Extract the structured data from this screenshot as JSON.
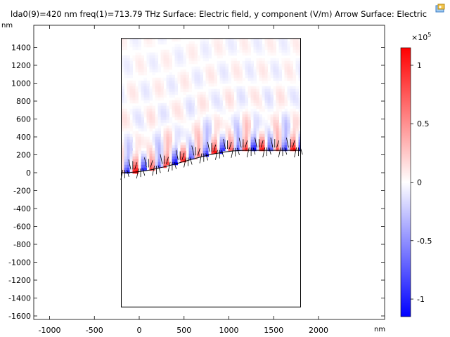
{
  "plot": {
    "title": "lda0(9)=420 nm freq(1)=713.79 THz   Surface: Electric field, y component (V/m)  Arrow Surface: Electric",
    "y_unit": "nm",
    "x_unit": "nm",
    "colorbar_exponent_base": "×10",
    "colorbar_exponent_power": "5"
  },
  "toolbar": {
    "copy_icon": "image-copy-icon"
  },
  "chart_data": {
    "type": "heatmap",
    "title": "Surface: Electric field, y component (V/m)",
    "parameters": {
      "lda0": "420 nm",
      "freq": "713.79 THz"
    },
    "xlabel": "nm",
    "ylabel": "nm",
    "xlim": [
      -1200,
      2250
    ],
    "ylim": [
      -1650,
      1650
    ],
    "x_ticks": [
      -1000,
      -500,
      0,
      500,
      1000,
      1500,
      2000
    ],
    "y_ticks": [
      1400,
      1200,
      1000,
      800,
      600,
      400,
      200,
      0,
      -200,
      -400,
      -600,
      -800,
      -1000,
      -1200,
      -1400,
      -1600
    ],
    "domain": {
      "x": [
        -200,
        1800
      ],
      "y": [
        -1500,
        1500
      ]
    },
    "interface": {
      "x_start": -200,
      "y_start": 0,
      "x_end": 1200,
      "y_end": 250,
      "flat_until": 1800
    },
    "field_period_nm": 176,
    "colorbar": {
      "colors": [
        "#ff0000",
        "#ffffff",
        "#0000ff"
      ],
      "max": 1.15,
      "min": -1.15,
      "ticks": [
        1,
        0.5,
        0,
        -0.5,
        -1
      ],
      "tick_labels": [
        "1",
        "0.5",
        "0",
        "-0.5",
        "-1"
      ],
      "scale": 100000
    },
    "arrows": {
      "name": "Arrow Surface: Electric field",
      "color": "#000000"
    }
  }
}
